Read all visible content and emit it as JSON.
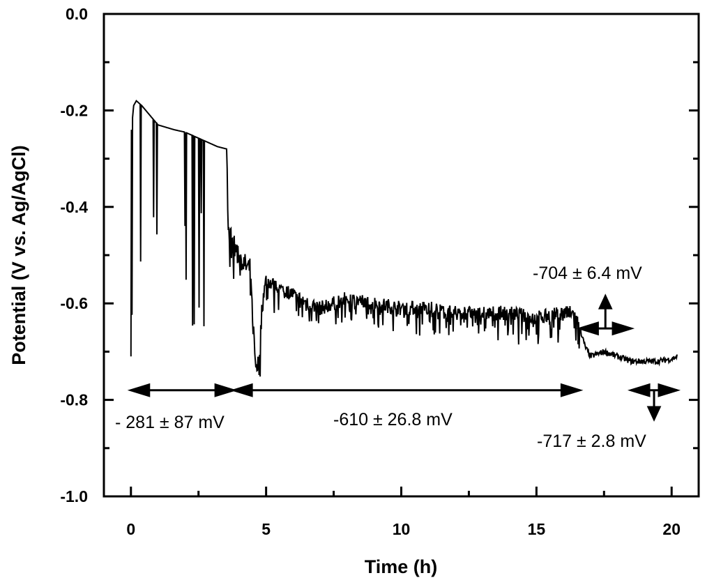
{
  "chart_data": {
    "type": "line",
    "title": "",
    "xlabel": "Time (h)",
    "ylabel": "Potential (V vs. Ag/AgCl)",
    "xlim": [
      -1,
      21
    ],
    "ylim": [
      -1.0,
      0.0
    ],
    "x_ticks": [
      0,
      5,
      10,
      15,
      20
    ],
    "x_tick_labels": [
      "0",
      "5",
      "10",
      "15",
      "20"
    ],
    "y_ticks": [
      0.0,
      -0.2,
      -0.4,
      -0.6,
      -0.8,
      -1.0
    ],
    "y_tick_labels": [
      "0.0",
      "-0.2",
      "-0.4",
      "-0.6",
      "-0.8",
      "-1.0"
    ],
    "grid": false,
    "series": [
      {
        "x": [
          0,
          0.02,
          0.1,
          0.2,
          0.4,
          0.7,
          1.0,
          1.3,
          1.6,
          2.0,
          2.4,
          2.8,
          3.0,
          3.2,
          3.55,
          3.6,
          3.8,
          4.0,
          4.2,
          4.4,
          4.6,
          4.75,
          4.85,
          5.0,
          5.5,
          6.0,
          6.5,
          7.0,
          7.5,
          8.0,
          9.0,
          10.0,
          11.0,
          12.0,
          13.0,
          14.0,
          15.0,
          16.0,
          16.4,
          16.6,
          16.8,
          17.0,
          17.5,
          18.0,
          18.5,
          19.0,
          19.5,
          20.0,
          20.2
        ],
        "y": [
          -0.71,
          -0.24,
          -0.19,
          -0.18,
          -0.19,
          -0.21,
          -0.23,
          -0.235,
          -0.24,
          -0.245,
          -0.255,
          -0.265,
          -0.27,
          -0.275,
          -0.28,
          -0.45,
          -0.48,
          -0.5,
          -0.52,
          -0.53,
          -0.72,
          -0.73,
          -0.6,
          -0.55,
          -0.57,
          -0.58,
          -0.6,
          -0.61,
          -0.6,
          -0.59,
          -0.6,
          -0.61,
          -0.61,
          -0.62,
          -0.62,
          -0.62,
          -0.63,
          -0.62,
          -0.62,
          -0.65,
          -0.69,
          -0.71,
          -0.7,
          -0.71,
          -0.72,
          -0.72,
          -0.72,
          -0.715,
          -0.71
        ]
      }
    ],
    "annotations": [
      {
        "text": "- 281 ± 87 mV",
        "x_range": [
          0,
          3.8
        ]
      },
      {
        "text": "-610 ± 26.8 mV",
        "x_range": [
          3.8,
          16.6
        ]
      },
      {
        "text": "-704 ± 6.4 mV",
        "x_range": [
          16.6,
          18.5
        ]
      },
      {
        "text": "-717 ± 2.8 mV",
        "x_range": [
          18.5,
          20.2
        ]
      }
    ]
  }
}
